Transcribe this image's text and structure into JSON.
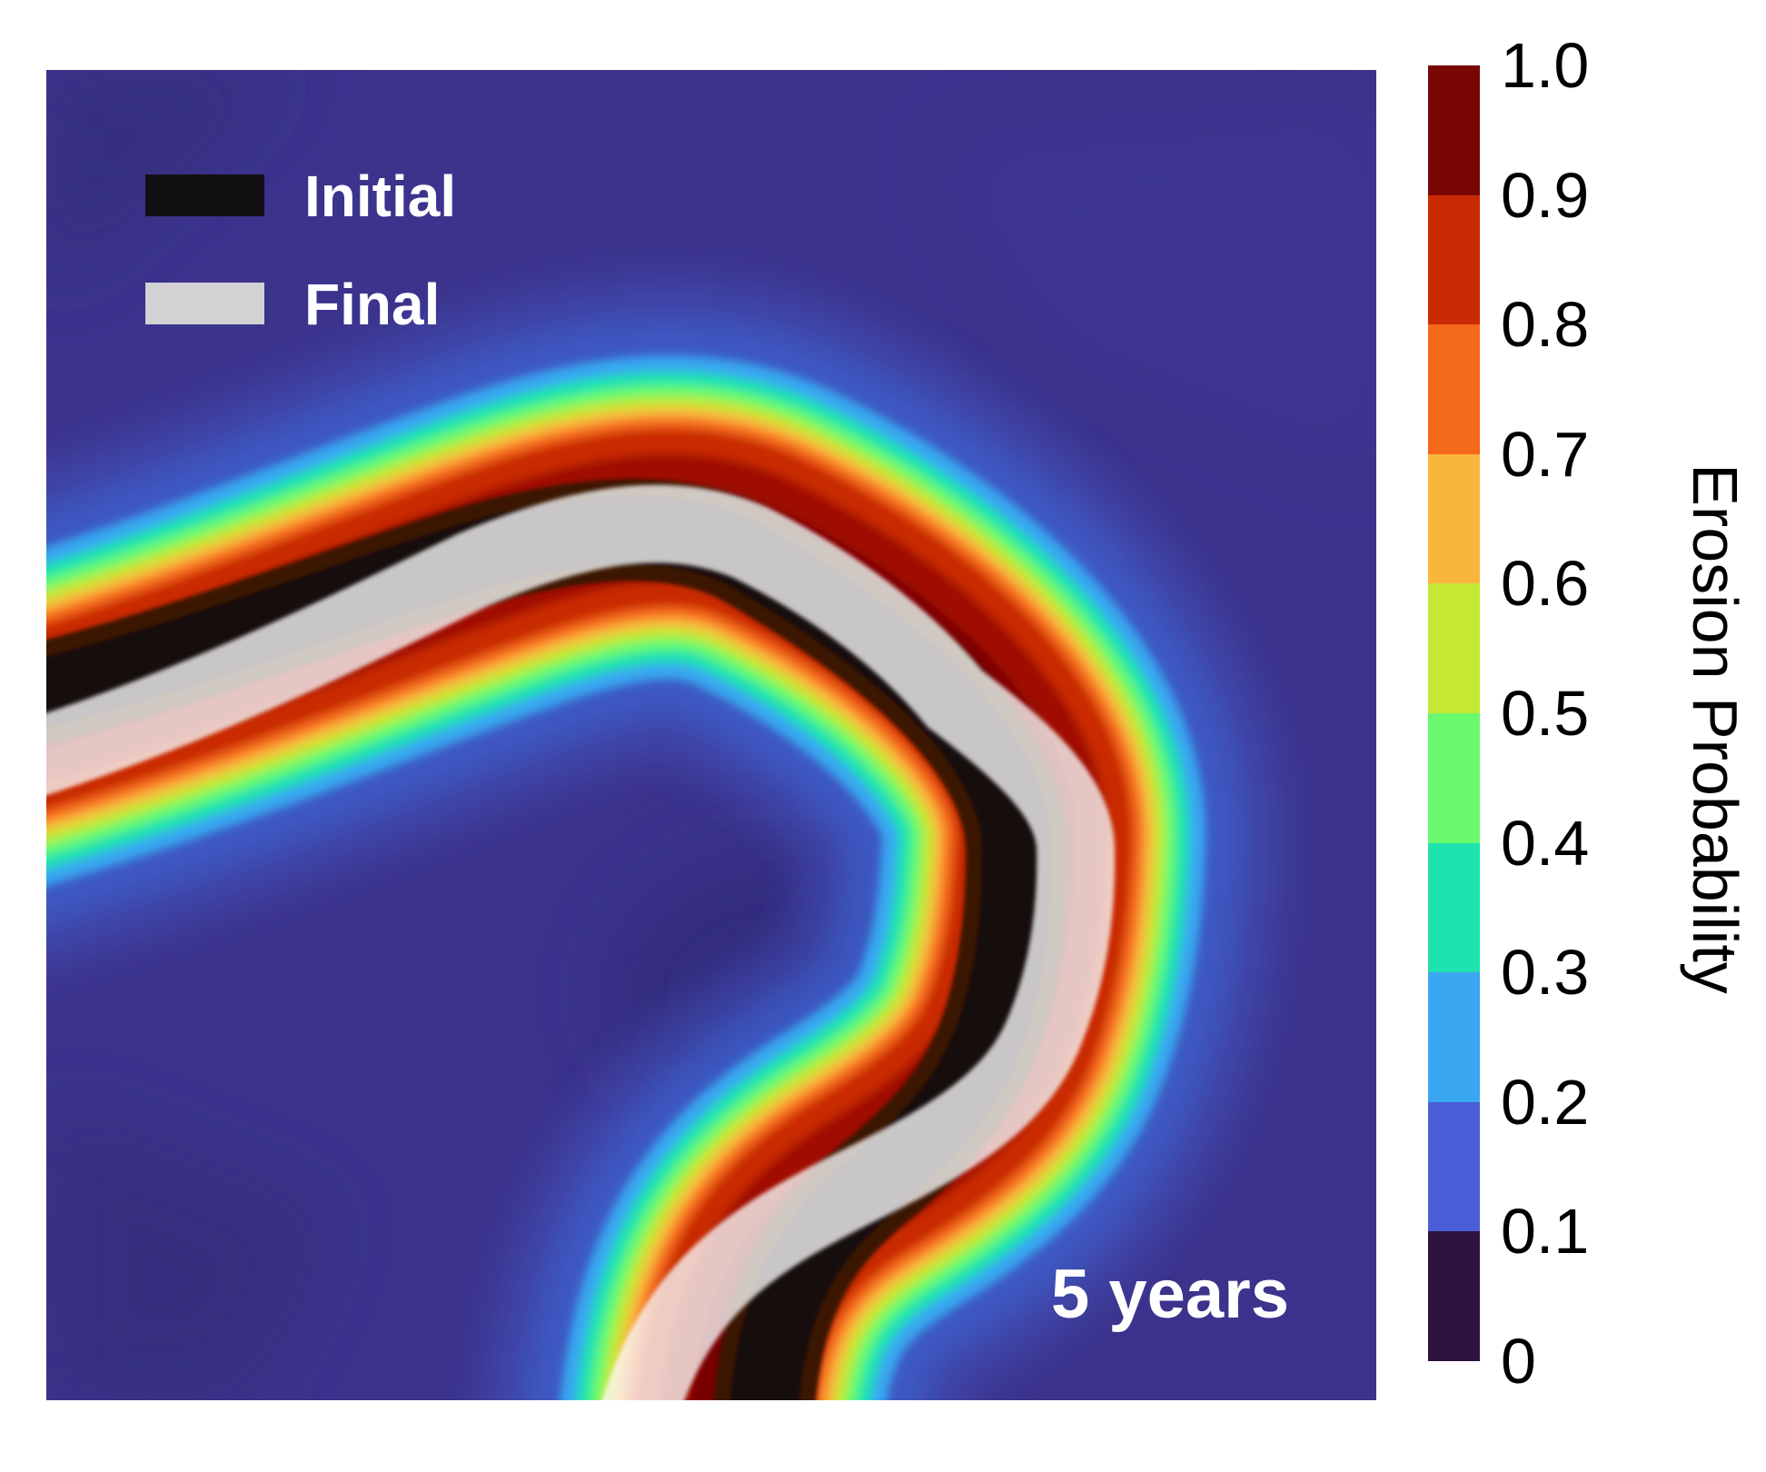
{
  "figure": {
    "time_label": "5 years",
    "background_color": "#3b338c",
    "legend": {
      "initial_label": "Initial",
      "final_label": "Final",
      "initial_swatch_color": "#131013",
      "final_swatch_color": "#d2d1d3"
    }
  },
  "colorbar": {
    "title": "Erosion Probability",
    "ticks_top_to_bottom": [
      "1.0",
      "0.9",
      "0.8",
      "0.7",
      "0.6",
      "0.5",
      "0.4",
      "0.3",
      "0.2",
      "0.1",
      "0"
    ],
    "segment_colors_top_to_bottom": [
      "#7a0604",
      "#cb2b04",
      "#f5691b",
      "#f9b63d",
      "#c5e835",
      "#68f96e",
      "#1ee3af",
      "#3aa7f3",
      "#495ed8",
      "#2d1340"
    ],
    "range": [
      0,
      1
    ]
  },
  "chart_data": {
    "type": "heatmap",
    "title": "",
    "field": "Erosion probability map of a meandering river bend after 5 years",
    "value_range": [
      0,
      1
    ],
    "discrete_levels": 10,
    "colormap_low_to_high": [
      "#2d1340",
      "#495ed8",
      "#3aa7f3",
      "#1ee3af",
      "#68f96e",
      "#c5e835",
      "#f9b63d",
      "#f5691b",
      "#cb2b04",
      "#7a0604"
    ],
    "colorbar_label": "Erosion Probability",
    "colorbar_position": "right",
    "legend_position": "top-left",
    "annotations": [
      "5 years"
    ],
    "background_probability": "approx 0.1-0.2 (indigo field far from channel)",
    "peak_probability": "approx 0.9-1.0 (dark-red core along the channel belt)",
    "overlays": [
      {
        "name": "Initial channel position",
        "color": "#131013",
        "opacity": 1.0
      },
      {
        "name": "Final channel position",
        "color": "#fafafa",
        "opacity": 0.8
      }
    ],
    "probability_belt_centerline_frac": [
      [
        0.0,
        0.499
      ],
      [
        0.171,
        0.429
      ],
      [
        0.355,
        0.359
      ],
      [
        0.54,
        0.352
      ],
      [
        0.664,
        0.428
      ],
      [
        0.704,
        0.471
      ],
      [
        0.75,
        0.581
      ],
      [
        0.728,
        0.714
      ],
      [
        0.615,
        0.83
      ],
      [
        0.505,
        1.0
      ]
    ],
    "initial_channel_centerline_frac": [
      [
        0.0,
        0.478
      ],
      [
        0.171,
        0.415
      ],
      [
        0.338,
        0.361
      ],
      [
        0.488,
        0.342
      ],
      [
        0.533,
        0.369
      ],
      [
        0.686,
        0.488
      ],
      [
        0.729,
        0.587
      ],
      [
        0.712,
        0.719
      ],
      [
        0.625,
        0.835
      ],
      [
        0.538,
        1.0
      ]
    ],
    "final_channel_centerline_frac": [
      [
        0.0,
        0.527
      ],
      [
        0.225,
        0.422
      ],
      [
        0.321,
        0.376
      ],
      [
        0.529,
        0.355
      ],
      [
        0.683,
        0.473
      ],
      [
        0.774,
        0.584
      ],
      [
        0.751,
        0.721
      ],
      [
        0.615,
        0.837
      ],
      [
        0.437,
        1.0
      ]
    ]
  }
}
